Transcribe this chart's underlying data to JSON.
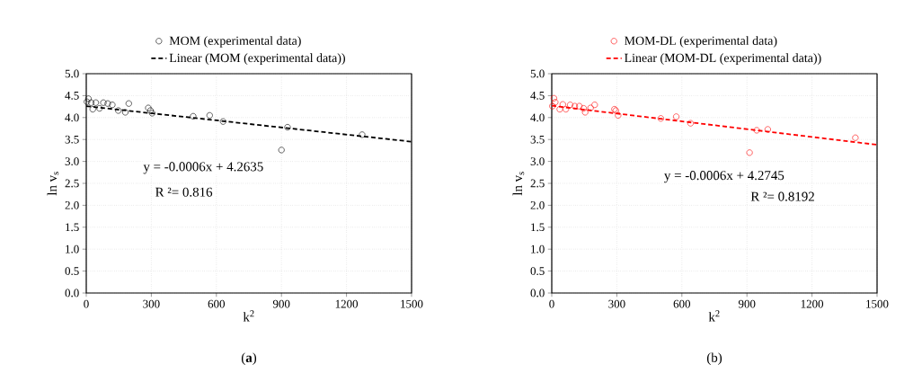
{
  "chart_data": [
    {
      "type": "scatter",
      "xlabel": "k$^{2}$",
      "ylabel": "ln v$_{s}$",
      "xlim": [
        0,
        1500
      ],
      "ylim": [
        0,
        5
      ],
      "xticks": [
        0,
        300,
        600,
        900,
        1200,
        1500
      ],
      "yticks": [
        {
          "value": 0,
          "label": "0.0"
        },
        {
          "value": 0.5,
          "label": "0.5"
        },
        {
          "value": 1,
          "label": "1.0"
        },
        {
          "value": 1.5,
          "label": "1.5"
        },
        {
          "value": 2,
          "label": "2.0"
        },
        {
          "value": 2.5,
          "label": "2.5"
        },
        {
          "value": 3,
          "label": "3.0"
        },
        {
          "value": 3.5,
          "label": "3.5"
        },
        {
          "value": 4,
          "label": "4.0"
        },
        {
          "value": 4.5,
          "label": "4.5"
        },
        {
          "value": 5,
          "label": "5.0"
        }
      ],
      "grid": true,
      "legend": "top",
      "marker": "circle",
      "series": [
        {
          "name": "MOM (experimental data)",
          "color": "#000000",
          "x": [
            3,
            10,
            23,
            30,
            44,
            61,
            79,
            99,
            120,
            148,
            180,
            196,
            286,
            296,
            304,
            493,
            569,
            631,
            900,
            928,
            1272
          ],
          "values": [
            4.36,
            4.43,
            4.34,
            4.19,
            4.34,
            4.21,
            4.34,
            4.32,
            4.29,
            4.16,
            4.12,
            4.32,
            4.22,
            4.16,
            4.1,
            4.03,
            4.05,
            3.91,
            3.26,
            3.78,
            3.61
          ]
        },
        {
          "name": "Linear (MOM (experimental data))",
          "type": "line",
          "line_style": "dashed",
          "marker": "none",
          "color": "#000000",
          "x": [
            0,
            1500
          ],
          "values": [
            4.26,
            3.45
          ]
        }
      ],
      "annotations": [
        "y = -0.0006x + 4.2635",
        "R ²= 0.816",
        "(**a**)"
      ]
    },
    {
      "type": "scatter",
      "xlabel": "k$^{2}$",
      "ylabel": "ln v$_{s}$",
      "xlim": [
        0,
        1500
      ],
      "ylim": [
        0,
        5
      ],
      "xticks": [
        0,
        300,
        600,
        900,
        1200,
        1500
      ],
      "yticks": [
        {
          "value": 0,
          "label": "0.0"
        },
        {
          "value": 0.5,
          "label": "0.5"
        },
        {
          "value": 1,
          "label": "1.0"
        },
        {
          "value": 1.5,
          "label": "1.5"
        },
        {
          "value": 2,
          "label": "2.0"
        },
        {
          "value": 2.5,
          "label": "2.5"
        },
        {
          "value": 3,
          "label": "3.0"
        },
        {
          "value": 3.5,
          "label": "3.5"
        },
        {
          "value": 4,
          "label": "4.0"
        },
        {
          "value": 4.5,
          "label": "4.5"
        },
        {
          "value": 5,
          "label": "5.0"
        }
      ],
      "grid": true,
      "legend": "top",
      "marker": "circle",
      "series": [
        {
          "name": "MOM-DL (experimental data)",
          "color": "#ff0000",
          "x": [
            3,
            10,
            16,
            37,
            51,
            65,
            85,
            106,
            127,
            147,
            154,
            179,
            198,
            289,
            295,
            306,
            503,
            574,
            640,
            912,
            945,
            996,
            1400
          ],
          "values": [
            4.26,
            4.44,
            4.35,
            4.19,
            4.3,
            4.19,
            4.29,
            4.26,
            4.26,
            4.21,
            4.12,
            4.22,
            4.29,
            4.19,
            4.16,
            4.05,
            3.98,
            4.02,
            3.87,
            3.2,
            3.71,
            3.73,
            3.54
          ]
        },
        {
          "name": "Linear (MOM-DL (experimental data))",
          "type": "line",
          "line_style": "dashed",
          "marker": "none",
          "color": "#ff0000",
          "x": [
            0,
            1500
          ],
          "values": [
            4.27,
            3.38
          ]
        }
      ],
      "annotations": [
        "y = -0.0006x + 4.2745",
        "R ²= 0.8192",
        "(b)"
      ]
    }
  ]
}
